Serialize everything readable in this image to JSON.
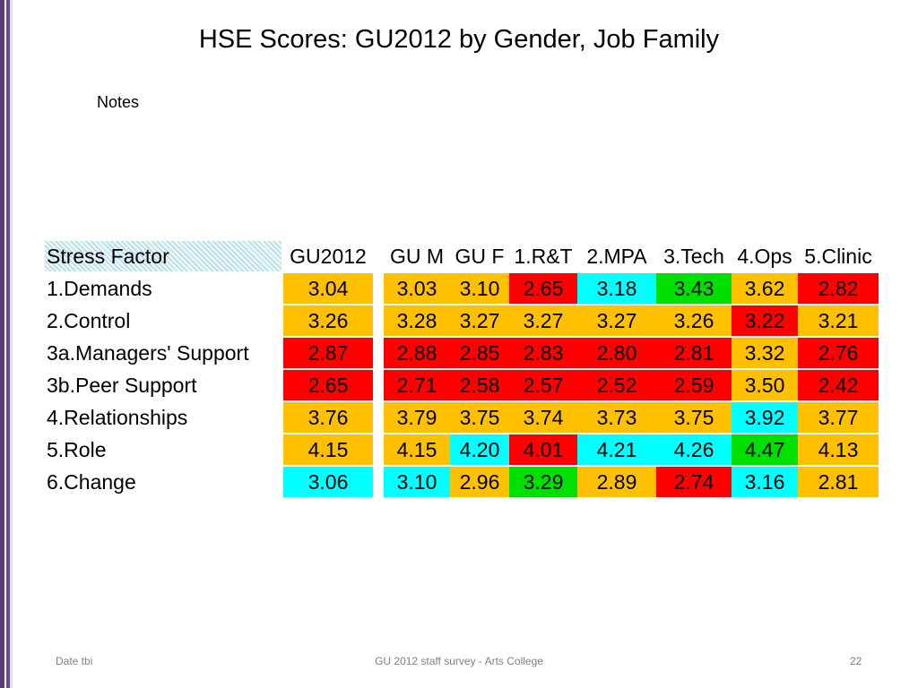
{
  "title": "HSE Scores: GU2012 by Gender, Job Family",
  "notes": "Notes",
  "table": {
    "row_header": "Stress Factor",
    "columns": [
      "GU2012",
      "GU M",
      "GU F",
      "1.R&T",
      "2.MPA",
      "3.Tech",
      "4.Ops",
      "5.Clinic"
    ],
    "rows": [
      {
        "label": "1.Demands",
        "values": [
          "3.04",
          "3.03",
          "3.10",
          "2.65",
          "3.18",
          "3.43",
          "3.62",
          "2.82"
        ],
        "colors": [
          "#ffc000",
          "#ffc000",
          "#ffc000",
          "#ff0000",
          "#00ffff",
          "#00e000",
          "#ffc000",
          "#ff0000"
        ]
      },
      {
        "label": "2.Control",
        "values": [
          "3.26",
          "3.28",
          "3.27",
          "3.27",
          "3.27",
          "3.26",
          "3.22",
          "3.21"
        ],
        "colors": [
          "#ffc000",
          "#ffc000",
          "#ffc000",
          "#ffc000",
          "#ffc000",
          "#ffc000",
          "#ff0000",
          "#ffc000"
        ]
      },
      {
        "label": "3a.Managers' Support",
        "values": [
          "2.87",
          "2.88",
          "2.85",
          "2.83",
          "2.80",
          "2.81",
          "3.32",
          "2.76"
        ],
        "colors": [
          "#ff0000",
          "#ff0000",
          "#ff0000",
          "#ff0000",
          "#ff0000",
          "#ff0000",
          "#ffc000",
          "#ff0000"
        ]
      },
      {
        "label": "3b.Peer Support",
        "values": [
          "2.65",
          "2.71",
          "2.58",
          "2.57",
          "2.52",
          "2.59",
          "3.50",
          "2.42"
        ],
        "colors": [
          "#ff0000",
          "#ff0000",
          "#ff0000",
          "#ff0000",
          "#ff0000",
          "#ff0000",
          "#ffc000",
          "#ff0000"
        ]
      },
      {
        "label": "4.Relationships",
        "values": [
          "3.76",
          "3.79",
          "3.75",
          "3.74",
          "3.73",
          "3.75",
          "3.92",
          "3.77"
        ],
        "colors": [
          "#ffc000",
          "#ffc000",
          "#ffc000",
          "#ffc000",
          "#ffc000",
          "#ffc000",
          "#00ffff",
          "#ffc000"
        ]
      },
      {
        "label": "5.Role",
        "values": [
          "4.15",
          "4.15",
          "4.20",
          "4.01",
          "4.21",
          "4.26",
          "4.47",
          "4.13"
        ],
        "colors": [
          "#ffc000",
          "#ffc000",
          "#00ffff",
          "#ff0000",
          "#00ffff",
          "#00ffff",
          "#00e000",
          "#ffc000"
        ]
      },
      {
        "label": "6.Change",
        "values": [
          "3.06",
          "3.10",
          "2.96",
          "3.29",
          "2.89",
          "2.74",
          "3.16",
          "2.81"
        ],
        "colors": [
          "#00ffff",
          "#00ffff",
          "#ffc000",
          "#00e000",
          "#ffc000",
          "#ff0000",
          "#00ffff",
          "#ffc000"
        ]
      }
    ]
  },
  "footer": {
    "left": "Date tbi",
    "center": "GU 2012 staff survey -  Arts College",
    "right": "22"
  },
  "colors": {
    "accent_bar": "#5b3b73",
    "amber": "#ffc000",
    "red": "#ff0000",
    "cyan": "#00ffff",
    "green": "#00e000"
  }
}
